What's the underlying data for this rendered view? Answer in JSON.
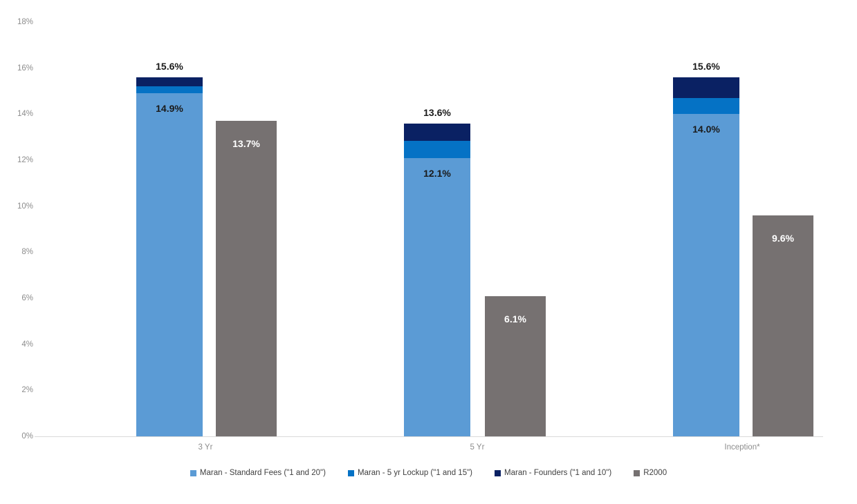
{
  "chart_data": {
    "type": "bar",
    "subtype": "stacked-grouped-columns",
    "title": "",
    "xlabel": "",
    "ylabel": "",
    "categories": [
      "3 Yr",
      "5 Yr",
      "Inception*"
    ],
    "series": [
      {
        "name": "Maran - Standard Fees (\"1 and 20\")",
        "color": "#5b9bd5",
        "stack": "maran",
        "values": [
          14.9,
          12.1,
          14.0
        ]
      },
      {
        "name": "Maran - 5 yr Lockup (\"1 and 15\")",
        "color": "#0572c5",
        "stack": "maran",
        "values": [
          0.3,
          0.75,
          0.7
        ]
      },
      {
        "name": "Maran - Founders (\"1 and 10\")",
        "color": "#0a2163",
        "stack": "maran",
        "values": [
          0.4,
          0.75,
          0.9
        ]
      },
      {
        "name": "R2000",
        "color": "#767171",
        "stack": "r2000",
        "values": [
          13.7,
          6.1,
          9.6
        ]
      }
    ],
    "maran_stack_totals": [
      15.6,
      13.6,
      15.6
    ],
    "data_labels": {
      "maran_base_inside": [
        "14.9%",
        "12.1%",
        "14.0%"
      ],
      "maran_total_above": [
        "15.6%",
        "13.6%",
        "15.6%"
      ],
      "r2000_inside": [
        "13.7%",
        "6.1%",
        "9.6%"
      ]
    },
    "y_axis": {
      "min": 0,
      "max": 18,
      "tick_step": 2,
      "ticks": [
        "0%",
        "2%",
        "4%",
        "6%",
        "8%",
        "10%",
        "12%",
        "14%",
        "16%",
        "18%"
      ]
    },
    "legend_position": "bottom",
    "grid": false,
    "colors": {
      "axis_line": "#d9d9d9",
      "tick_text": "#8c8c8c",
      "legend_text": "#404040",
      "label_dark": "#1a1a1a",
      "label_light": "#ffffff",
      "background": "#ffffff"
    }
  }
}
